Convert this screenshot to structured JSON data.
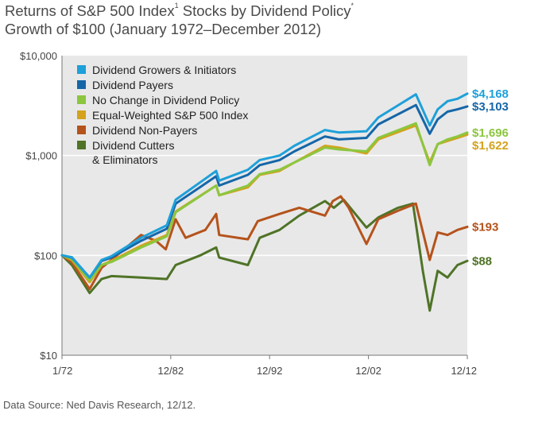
{
  "title": {
    "line1_main": "Returns of S&P 500 Index",
    "line1_sup1": "1",
    "line1_rest": " Stocks by Dividend Policy",
    "line1_sup2": "*",
    "line2": "Growth of $100 (January 1972–December 2012)"
  },
  "source": "Data Source: Ned Davis Research, 12/12.",
  "chart_data": {
    "type": "line",
    "title": "Returns of S&P 500 Index Stocks by Dividend Policy",
    "subtitle": "Growth of $100 (January 1972–December 2012)",
    "y_scale": "log",
    "ylim": [
      10,
      10000
    ],
    "y_ticks": [
      "$10",
      "$100",
      "$1,000",
      "$10,000"
    ],
    "y_tick_values": [
      10,
      100,
      1000,
      10000
    ],
    "xlim": [
      1972.0,
      2013.0
    ],
    "x_ticks": [
      "1/72",
      "12/82",
      "12/92",
      "12/02",
      "12/12"
    ],
    "x_tick_values": [
      1972.0,
      1983.0,
      1993.0,
      2003.0,
      2013.0
    ],
    "grid": "horizontal",
    "legend_position": "top-left",
    "end_labels": [
      "$4,168",
      "$3,103",
      "$1,696",
      "$1,622",
      "$193",
      "$88"
    ],
    "series": [
      {
        "name": "Dividend Growers & Initiators",
        "color": "#1ea0d9",
        "end_label": "$4,168",
        "x": [
          1972,
          1973,
          1974.8,
          1976,
          1977,
          1980,
          1982.6,
          1983.5,
          1987.6,
          1987.9,
          1990.8,
          1992,
          1994,
          1995.5,
          1998.6,
          2000,
          2002.8,
          2004,
          2007.8,
          2009.2,
          2010,
          2011,
          2012,
          2013
        ],
        "y": [
          100,
          96,
          60,
          90,
          98,
          150,
          200,
          360,
          700,
          560,
          720,
          900,
          1000,
          1250,
          1800,
          1700,
          1750,
          2400,
          4100,
          2000,
          2900,
          3500,
          3700,
          4168
        ]
      },
      {
        "name": "Dividend Payers",
        "color": "#1566a8",
        "end_label": "$3,103",
        "x": [
          1972,
          1973,
          1974.8,
          1976,
          1977,
          1980,
          1982.6,
          1983.5,
          1987.6,
          1987.9,
          1990.8,
          1992,
          1994,
          1995.5,
          1998.6,
          2000,
          2002.8,
          2004,
          2007.8,
          2009.2,
          2010,
          2011,
          2012,
          2013
        ],
        "y": [
          100,
          95,
          60,
          88,
          95,
          140,
          185,
          330,
          620,
          500,
          640,
          800,
          900,
          1100,
          1550,
          1450,
          1500,
          2050,
          3200,
          1650,
          2300,
          2750,
          2900,
          3103
        ]
      },
      {
        "name": "No Change in Dividend Policy",
        "color": "#8cc63f",
        "end_label": "$1,696",
        "x": [
          1972,
          1973,
          1974.8,
          1976,
          1977,
          1980,
          1982.6,
          1983.5,
          1987.6,
          1987.9,
          1990.8,
          1992,
          1994,
          1995.5,
          1998.6,
          2000,
          2002.8,
          2004,
          2007.8,
          2009.2,
          2010,
          2011,
          2012,
          2013
        ],
        "y": [
          100,
          92,
          56,
          80,
          86,
          120,
          155,
          270,
          500,
          400,
          500,
          650,
          720,
          850,
          1200,
          1150,
          1100,
          1500,
          2100,
          800,
          1300,
          1450,
          1550,
          1696
        ]
      },
      {
        "name": "Equal-Weighted S&P 500 Index",
        "color": "#d4a21c",
        "end_label": "$1,622",
        "x": [
          1972,
          1973,
          1974.8,
          1976,
          1977,
          1980,
          1982.6,
          1983.5,
          1987.6,
          1987.9,
          1990.8,
          1992,
          1994,
          1995.5,
          1998.6,
          2000,
          2002.8,
          2004,
          2007.8,
          2009.2,
          2010,
          2011,
          2012,
          2013
        ],
        "y": [
          100,
          90,
          54,
          80,
          88,
          125,
          160,
          275,
          500,
          400,
          480,
          640,
          700,
          850,
          1250,
          1200,
          1050,
          1450,
          2000,
          850,
          1300,
          1400,
          1500,
          1622
        ]
      },
      {
        "name": "Dividend Non-Payers",
        "color": "#b5531c",
        "end_label": "$193",
        "x": [
          1972,
          1973,
          1974.8,
          1976,
          1977,
          1980,
          1981.5,
          1982.5,
          1983.5,
          1984.5,
          1986.5,
          1987.6,
          1987.9,
          1990.8,
          1991.8,
          1994,
          1996,
          1998.6,
          1999.4,
          2000.2,
          2001,
          2002.8,
          2004,
          2006,
          2007.8,
          2009.2,
          2010,
          2011,
          2012,
          2013
        ],
        "y": [
          100,
          85,
          46,
          75,
          90,
          160,
          140,
          115,
          230,
          150,
          180,
          260,
          160,
          145,
          220,
          260,
          300,
          250,
          350,
          390,
          300,
          130,
          230,
          280,
          330,
          90,
          170,
          160,
          180,
          193
        ]
      },
      {
        "name": "Dividend Cutters\n& Eliminators",
        "color": "#4f7327",
        "end_label": "$88",
        "x": [
          1972,
          1973,
          1974.8,
          1976,
          1977,
          1980,
          1982.6,
          1983.5,
          1986,
          1987.6,
          1987.9,
          1990.8,
          1992,
          1994,
          1996,
          1998.6,
          1999.5,
          2000.5,
          2002.8,
          2004,
          2006,
          2007.5,
          2008.5,
          2009.2,
          2010,
          2011,
          2012,
          2013
        ],
        "y": [
          100,
          80,
          42,
          58,
          62,
          60,
          58,
          80,
          100,
          120,
          95,
          80,
          150,
          180,
          250,
          350,
          300,
          360,
          190,
          240,
          300,
          330,
          70,
          28,
          70,
          60,
          80,
          88
        ]
      }
    ]
  }
}
